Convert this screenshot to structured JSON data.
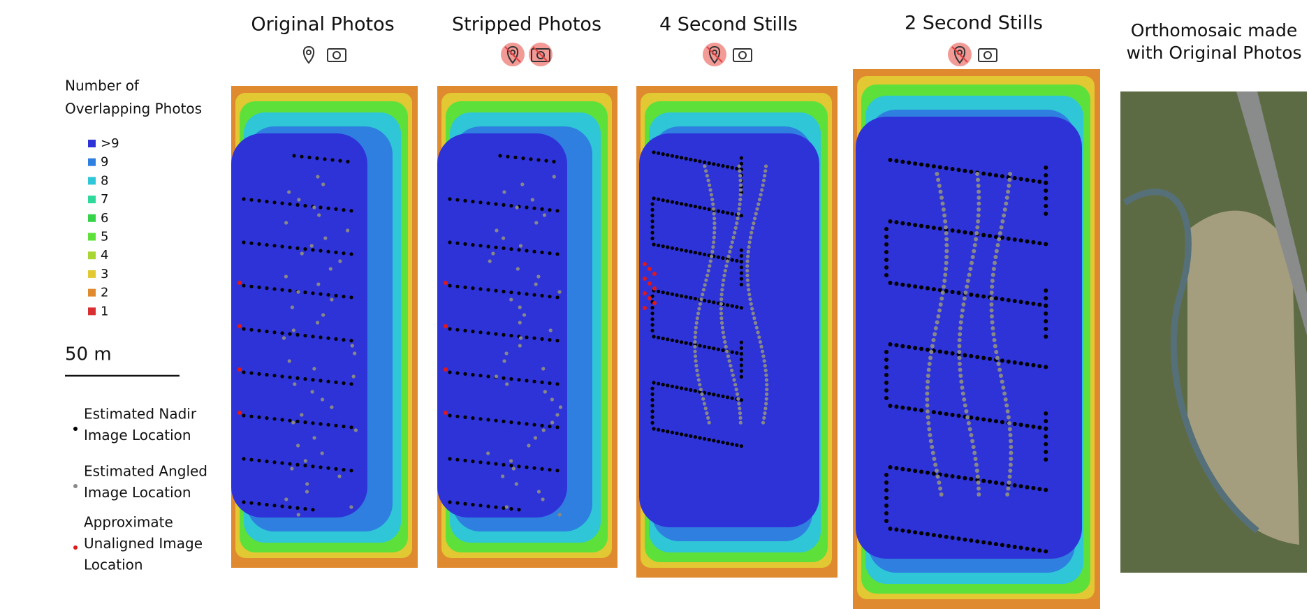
{
  "panels": [
    {
      "title": "Original Photos"
    },
    {
      "title": "Stripped Photos"
    },
    {
      "title": "4 Second Stills"
    },
    {
      "title": "2 Second Stills"
    }
  ],
  "orthomosaic": {
    "title_lines": [
      "Orthomosaic made",
      "with Original Photos"
    ]
  },
  "legend": {
    "title_lines": [
      "Number of",
      "Overlapping Photos"
    ],
    "items": [
      {
        "label": ">9",
        "color": "#2e33d8"
      },
      {
        "label": "9",
        "color": "#2f7fe0"
      },
      {
        "label": "8",
        "color": "#2fc6d8"
      },
      {
        "label": "7",
        "color": "#2fd99c"
      },
      {
        "label": "6",
        "color": "#35d24a"
      },
      {
        "label": "5",
        "color": "#5ee03a"
      },
      {
        "label": "4",
        "color": "#a9d632"
      },
      {
        "label": "3",
        "color": "#e2c832"
      },
      {
        "label": "2",
        "color": "#e08a30"
      },
      {
        "label": "1",
        "color": "#d83030"
      }
    ]
  },
  "scale_bar": {
    "label": "50 m"
  },
  "point_legend": [
    {
      "lines": [
        "Estimated Nadir",
        "Image Location"
      ],
      "color": "#000000"
    },
    {
      "lines": [
        "Estimated Angled",
        "Image Location"
      ],
      "color": "#888888"
    },
    {
      "lines": [
        "Approximate",
        "Unaligned Image",
        "Location"
      ],
      "color": "#e01818"
    }
  ]
}
